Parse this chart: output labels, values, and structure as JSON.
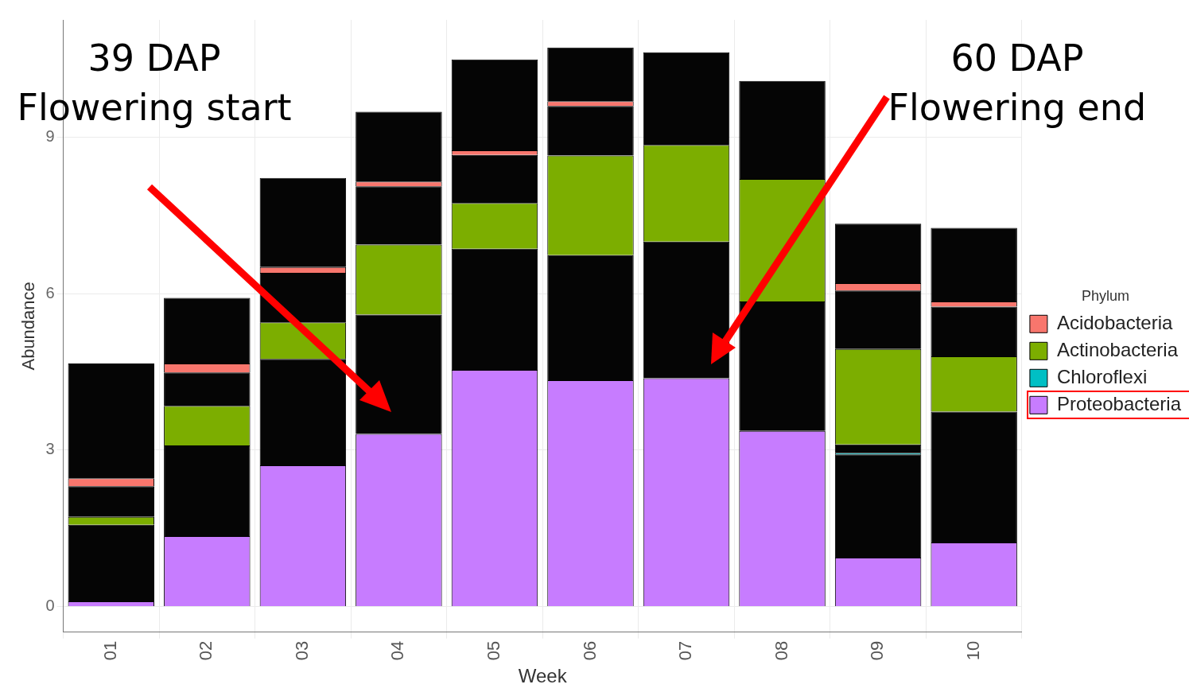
{
  "chart_data": {
    "type": "bar",
    "stacked": true,
    "xlabel": "Week",
    "ylabel": "Abundance",
    "legend_title": "Phylum",
    "legend": "right",
    "grid": true,
    "categories": [
      "01",
      "02",
      "03",
      "04",
      "05",
      "06",
      "07",
      "08",
      "09",
      "10"
    ],
    "ylim": [
      -0.49,
      11.25
    ],
    "yticks": [
      0,
      3,
      6,
      9
    ],
    "series": [
      {
        "name": "Proteobacteria",
        "color": "#c77cff",
        "values": [
          0.1,
          1.35,
          2.71,
          3.31,
          4.54,
          4.34,
          4.38,
          3.37,
          0.94,
          1.23
        ]
      },
      {
        "color": "#050505",
        "values": [
          1.47,
          1.74,
          2.04,
          2.29,
          2.32,
          2.4,
          2.62,
          2.48,
          1.98,
          2.51
        ]
      },
      {
        "name": "Chloroflexi",
        "color": "#00bfc4",
        "values": [
          null,
          null,
          null,
          null,
          null,
          null,
          null,
          null,
          0.03,
          null
        ]
      },
      {
        "color": "#050505",
        "values": [
          null,
          null,
          null,
          null,
          null,
          null,
          null,
          null,
          0.16,
          null
        ]
      },
      {
        "name": "Actinobacteria",
        "color": "#7cae00",
        "values": [
          0.15,
          0.76,
          0.7,
          1.34,
          0.88,
          1.91,
          1.85,
          2.35,
          1.83,
          1.06
        ]
      },
      {
        "color": "#050505",
        "values": [
          0.59,
          0.64,
          0.95,
          1.12,
          0.92,
          0.95,
          null,
          null,
          1.12,
          0.95
        ]
      },
      {
        "name": "Acidobacteria",
        "color": "#f8766d",
        "values": [
          0.15,
          0.17,
          0.11,
          0.09,
          0.09,
          0.09,
          null,
          null,
          0.14,
          0.1
        ]
      },
      {
        "color": "#050505",
        "values": [
          2.2,
          1.26,
          1.71,
          1.34,
          1.74,
          1.03,
          1.78,
          1.88,
          1.14,
          1.41
        ]
      }
    ],
    "annotations": [
      "39 DAP\nFlowering start",
      "60 DAP\nFlowering end"
    ]
  }
}
